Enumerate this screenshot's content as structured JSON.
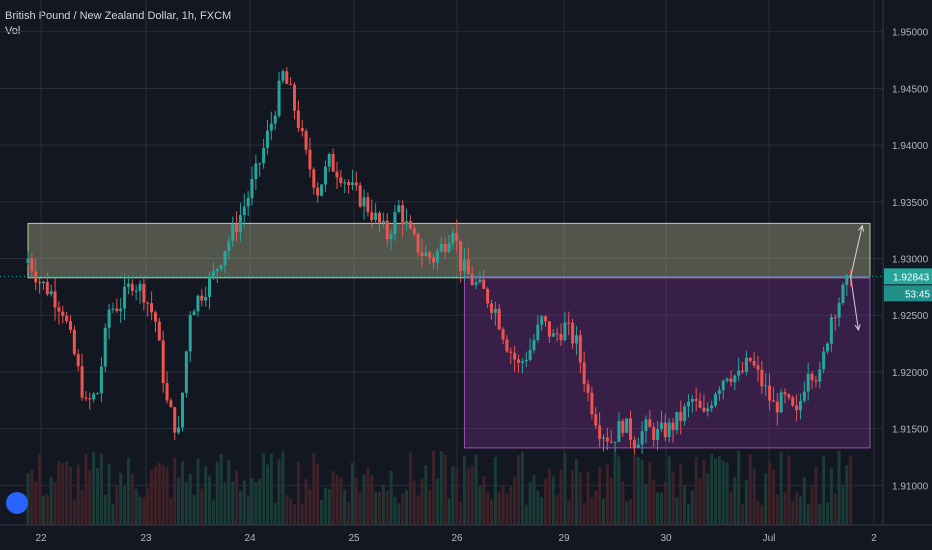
{
  "header": {
    "title": "British Pound / New Zealand Dollar, 1h, FXCM",
    "indicator": "Vol"
  },
  "colors": {
    "background": "#131722",
    "grid": "#2a2e39",
    "up": "#26a69a",
    "down": "#ef5350",
    "resistance_zone": "#c8c99a",
    "range_box": "#7b2e8e",
    "price_label": "#26a69a",
    "arrow": "#d1d4dc"
  },
  "price_label": {
    "price": "1.92843",
    "countdown": "53:45"
  },
  "chart_data": {
    "type": "candlestick",
    "title": "British Pound / New Zealand Dollar, 1h, FXCM",
    "x_ticks": [
      "22",
      "23",
      "24",
      "25",
      "26",
      "29",
      "30",
      "Jul",
      "2"
    ],
    "y_ticks": [
      "1.95000",
      "1.94500",
      "1.94000",
      "1.93500",
      "1.93000",
      "1.92500",
      "1.92000",
      "1.91500",
      "1.91000"
    ],
    "ylim": [
      1.9065,
      1.9528
    ],
    "grid": true,
    "close_path": [
      [
        0,
        1.93
      ],
      [
        3,
        1.928
      ],
      [
        6,
        1.927
      ],
      [
        9,
        1.9255
      ],
      [
        12,
        1.9215
      ],
      [
        15,
        1.917
      ],
      [
        18,
        1.9182
      ],
      [
        21,
        1.9255
      ],
      [
        24,
        1.926
      ],
      [
        27,
        1.928
      ],
      [
        30,
        1.927
      ],
      [
        33,
        1.9245
      ],
      [
        36,
        1.9172
      ],
      [
        39,
        1.9145
      ],
      [
        42,
        1.9255
      ],
      [
        45,
        1.927
      ],
      [
        48,
        1.9285
      ],
      [
        51,
        1.931
      ],
      [
        54,
        1.933
      ],
      [
        57,
        1.9355
      ],
      [
        60,
        1.9385
      ],
      [
        63,
        1.942
      ],
      [
        66,
        1.9462
      ],
      [
        68,
        1.9445
      ],
      [
        70,
        1.942
      ],
      [
        72,
        1.939
      ],
      [
        75,
        1.936
      ],
      [
        78,
        1.9385
      ],
      [
        81,
        1.9375
      ],
      [
        84,
        1.936
      ],
      [
        87,
        1.935
      ],
      [
        90,
        1.9335
      ],
      [
        93,
        1.932
      ],
      [
        96,
        1.9345
      ],
      [
        99,
        1.932
      ],
      [
        102,
        1.9305
      ],
      [
        105,
        1.93
      ],
      [
        108,
        1.9315
      ],
      [
        110,
        1.933
      ],
      [
        112,
        1.9295
      ],
      [
        115,
        1.928
      ],
      [
        118,
        1.927
      ],
      [
        121,
        1.9255
      ],
      [
        124,
        1.9225
      ],
      [
        127,
        1.9205
      ],
      [
        130,
        1.922
      ],
      [
        133,
        1.9245
      ],
      [
        136,
        1.923
      ],
      [
        139,
        1.924
      ],
      [
        142,
        1.9225
      ],
      [
        145,
        1.918
      ],
      [
        148,
        1.915
      ],
      [
        151,
        1.914
      ],
      [
        154,
        1.9155
      ],
      [
        157,
        1.914
      ],
      [
        160,
        1.915
      ],
      [
        163,
        1.9145
      ],
      [
        166,
        1.915
      ],
      [
        169,
        1.916
      ],
      [
        172,
        1.9175
      ],
      [
        175,
        1.916
      ],
      [
        178,
        1.9185
      ],
      [
        181,
        1.92
      ],
      [
        184,
        1.9195
      ],
      [
        187,
        1.921
      ],
      [
        190,
        1.919
      ],
      [
        193,
        1.917
      ],
      [
        196,
        1.9175
      ],
      [
        199,
        1.916
      ],
      [
        202,
        1.9205
      ],
      [
        205,
        1.9195
      ],
      [
        208,
        1.925
      ],
      [
        211,
        1.927
      ],
      [
        213,
        1.9284
      ]
    ],
    "annotations": {
      "resistance_zone": {
        "y_top": 1.9331,
        "y_bottom": 1.9283,
        "x_start": 0,
        "x_end": 218
      },
      "range_box": {
        "y_top": 1.9284,
        "y_bottom": 1.9133,
        "x_start": 113,
        "x_end": 218
      },
      "projection_up": {
        "from": [
          213,
          1.9284
        ],
        "to": [
          216,
          1.9329
        ]
      },
      "projection_down": {
        "from": [
          213,
          1.9284
        ],
        "to": [
          215,
          1.9237
        ]
      }
    },
    "last_price": 1.92843
  }
}
